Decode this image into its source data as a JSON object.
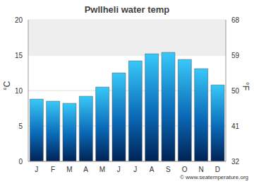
{
  "chart_data": {
    "type": "bar",
    "title": "Pwllheli water temp",
    "categories": [
      "J",
      "F",
      "M",
      "A",
      "M",
      "J",
      "J",
      "A",
      "S",
      "O",
      "N",
      "D"
    ],
    "values": [
      8.8,
      8.5,
      8.2,
      9.2,
      10.5,
      12.5,
      14.2,
      15.2,
      15.4,
      14.4,
      13.1,
      10.8
    ],
    "color": "#38c8f8",
    "ylabel": "°C",
    "ylim": [
      0,
      20
    ],
    "yticks": [
      0,
      5,
      10,
      15,
      20
    ],
    "y2label": "°F",
    "y2lim": [
      32,
      68
    ],
    "y2ticks": [
      32,
      41,
      50,
      59,
      68
    ],
    "grid": true,
    "footer": "© www.seatemperature.org"
  }
}
